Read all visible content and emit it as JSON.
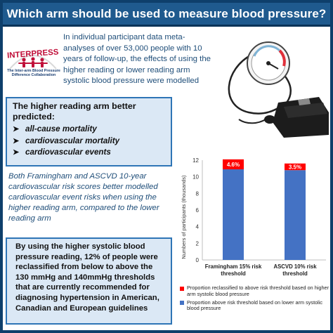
{
  "title": "Which arm should be used to measure blood pressure?",
  "intro": "In individual participant data meta-analyses of over 53,000 people with 10 years of follow-up, the effects of using the higher reading or lower reading arm systolic blood pressure were modelled",
  "logo": {
    "name": "INTERPRESS",
    "subtitle": "The Inter-arm Blood Pressure Difference Collaboration"
  },
  "findings_box": {
    "heading": "The higher reading arm better predicted:",
    "items": [
      "all-cause mortality",
      "cardiovascular mortality",
      "cardiovascular events"
    ]
  },
  "risk_scores_text": "Both Framingham and ASCVD 10-year cardiovascular risk scores better modelled cardiovascular event risks when using the higher reading arm, compared to the lower reading arm",
  "reclassification_box": "By using the higher systolic blood pressure reading, 12% of people were reclassified from below to above the 130 mmHg and 140mmHg thresholds that are currently recommended for diagnosing hypertension in American, Canadian and European guidelines",
  "colors": {
    "title_bg": "#1f5a8e",
    "box_bg": "#dbe8f5",
    "box_border": "#2e75b6",
    "bar_blue": "#4472c4",
    "bar_red": "#ff0000"
  },
  "chart_data": {
    "type": "bar",
    "stacked": true,
    "categories": [
      "Framingham 15% risk threshold",
      "ASCVD 10% risk threshold"
    ],
    "category_lines": [
      [
        "Framingham 15% risk",
        "threshold"
      ],
      [
        "ASCVD 10% risk",
        "threshold"
      ]
    ],
    "series": [
      {
        "name": "Proportion above risk threshold based on lower arm systolic blood pressure",
        "values": [
          10.9,
          10.8
        ],
        "color": "#4472c4"
      },
      {
        "name": "Proportion reclassified to above risk threshold based on higher arm systolic blood pressure",
        "values": [
          1.2,
          0.8
        ],
        "color": "#ff0000"
      }
    ],
    "data_labels": [
      "4.6%",
      "3.5%"
    ],
    "ylabel": "Numbers of participants (thousands)",
    "ylim": [
      0,
      12
    ],
    "yticks": [
      0,
      2,
      4,
      6,
      8,
      10,
      12
    ],
    "grid": false,
    "legend_position": "bottom"
  }
}
